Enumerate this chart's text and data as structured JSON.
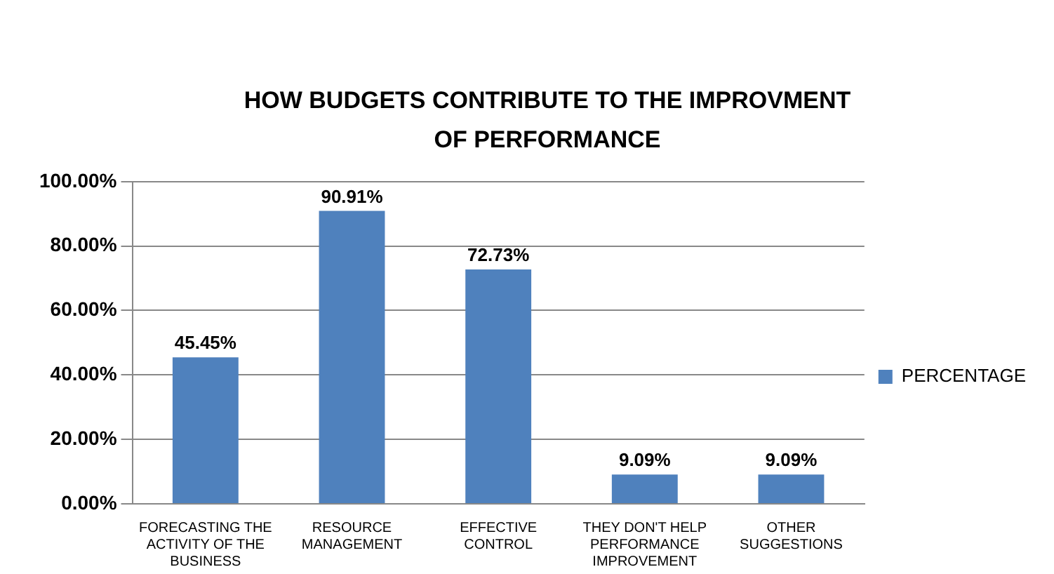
{
  "chart_data": {
    "type": "bar",
    "title": "HOW BUDGETS CONTRIBUTE TO THE IMPROVMENT OF PERFORMANCE",
    "categories": [
      "FORECASTING THE ACTIVITY OF THE BUSINESS",
      "RESOURCE MANAGEMENT",
      "EFFECTIVE CONTROL",
      "THEY DON'T HELP PERFORMANCE IMPROVEMENT",
      "OTHER SUGGESTIONS"
    ],
    "series": [
      {
        "name": "PERCENTAGE",
        "color": "#4f81bd",
        "values": [
          45.45,
          90.91,
          72.73,
          9.09,
          9.09
        ],
        "value_labels": [
          "45.45%",
          "90.91%",
          "72.73%",
          "9.09%",
          "9.09%"
        ]
      }
    ],
    "ylim": [
      0,
      100
    ],
    "yticks": [
      {
        "value": 0,
        "label": "0.00%"
      },
      {
        "value": 20,
        "label": "20.00%"
      },
      {
        "value": 40,
        "label": "40.00%"
      },
      {
        "value": 60,
        "label": "60.00%"
      },
      {
        "value": 80,
        "label": "80.00%"
      },
      {
        "value": 100,
        "label": "100.00%"
      }
    ],
    "grid": "y",
    "legend": "right"
  }
}
